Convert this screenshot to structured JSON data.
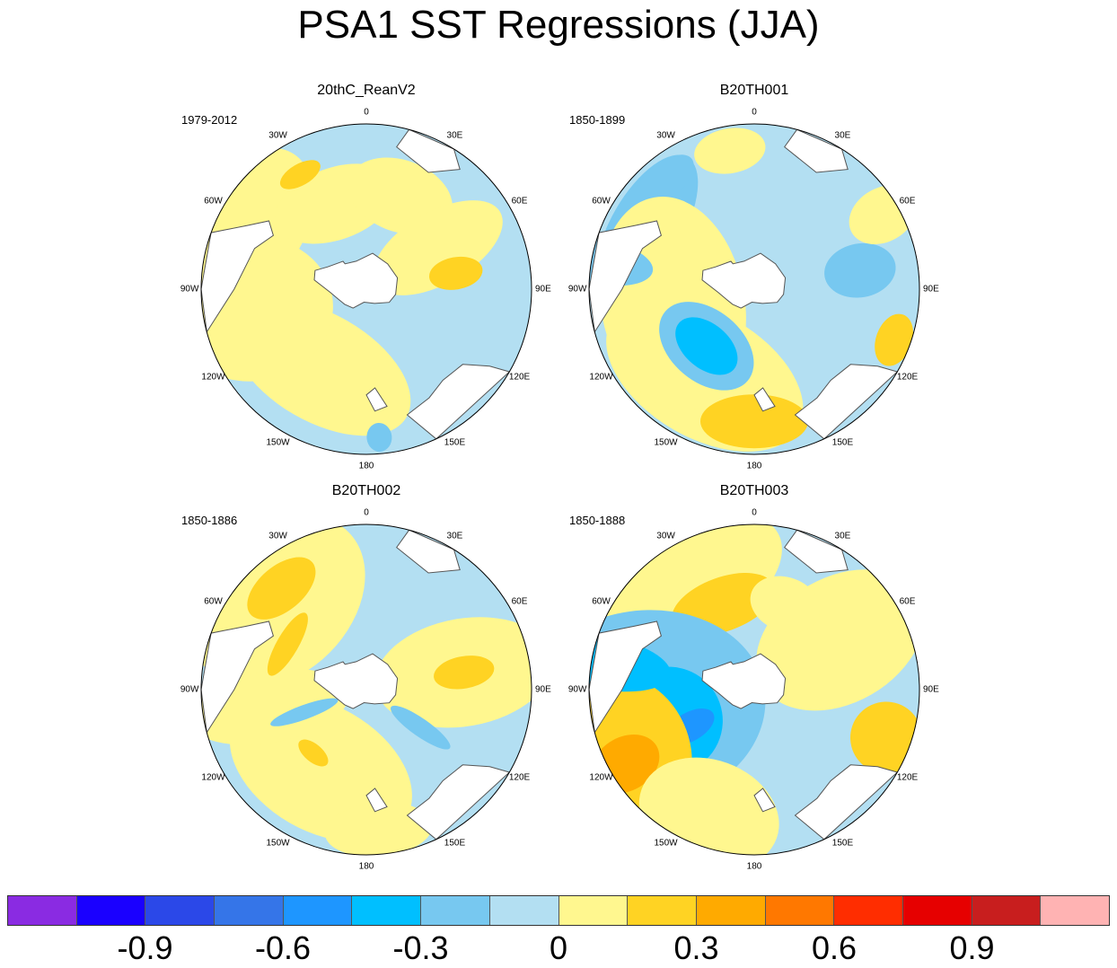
{
  "title": "PSA1 SST Regressions (JJA)",
  "panels": [
    {
      "name": "20thC_ReanV2",
      "years": "1979-2012"
    },
    {
      "name": "B20TH001",
      "years": "1850-1899"
    },
    {
      "name": "B20TH002",
      "years": "1850-1886"
    },
    {
      "name": "B20TH003",
      "years": "1850-1888"
    }
  ],
  "longitude_labels": [
    "0",
    "30E",
    "60E",
    "90E",
    "120E",
    "150E",
    "180",
    "150W",
    "120W",
    "90W",
    "60W",
    "30W"
  ],
  "chart_data": {
    "type": "heatmap",
    "projection": "south-polar-stereographic",
    "variable": "SST regression on PSA1 index, JJA",
    "colorbar": {
      "levels": [
        -1.05,
        -0.9,
        -0.75,
        -0.6,
        -0.45,
        -0.3,
        -0.15,
        0,
        0.15,
        0.3,
        0.45,
        0.6,
        0.75,
        0.9,
        1.05
      ],
      "tick_labels": [
        "-0.9",
        "-0.6",
        "-0.3",
        "0",
        "0.3",
        "0.6",
        "0.9"
      ],
      "tick_values": [
        -0.9,
        -0.6,
        -0.3,
        0,
        0.3,
        0.6,
        0.9
      ],
      "colors": [
        "#8a2be2",
        "#1a00ff",
        "#2b48e8",
        "#3575e8",
        "#1e96ff",
        "#00bfff",
        "#77c8f0",
        "#b3dff2",
        "#fff78f",
        "#ffd323",
        "#ffaa00",
        "#ff7800",
        "#ff2d00",
        "#e60000",
        "#c81e1e",
        "#ffb3b3"
      ]
    }
  }
}
